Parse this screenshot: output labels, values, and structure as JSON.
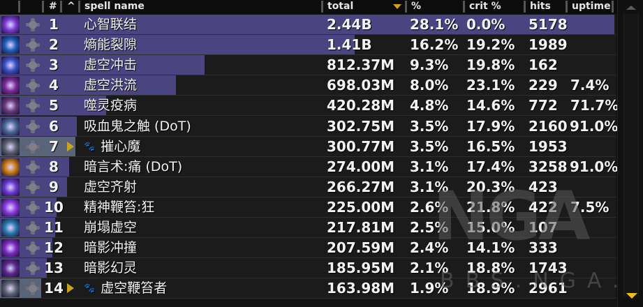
{
  "header": {
    "columns": [
      {
        "key": "rank",
        "label": "#"
      },
      {
        "key": "expand",
        "label": "^"
      },
      {
        "key": "name",
        "label": "spell name"
      },
      {
        "key": "total",
        "label": "total",
        "sorted": "desc"
      },
      {
        "key": "pct",
        "label": "%"
      },
      {
        "key": "crit",
        "label": "crit %"
      },
      {
        "key": "hits",
        "label": "hits"
      },
      {
        "key": "uptime",
        "label": "uptime"
      }
    ]
  },
  "colors": {
    "bar": "#4a4480",
    "pet_bar": "#5a6478",
    "sort_arrow": "#d4a017",
    "expand_arrow": "#c9a420",
    "row_bg": "#1b1b1b"
  },
  "rows": [
    {
      "rank": "1",
      "name": "心智联结",
      "total": "2.44B",
      "pct": "28.1%",
      "crit": "0.0%",
      "hits": "5178",
      "uptime": "",
      "bar": 880,
      "icon": "mind-link-icon",
      "icon_color": "#7a3ad0",
      "pet": false
    },
    {
      "rank": "2",
      "name": "熵能裂隙",
      "total": "1.41B",
      "pct": "16.2%",
      "crit": "19.2%",
      "hits": "1989",
      "uptime": "",
      "bar": 508,
      "icon": "entropic-rift-icon",
      "icon_color": "#1d5fb8",
      "pet": false
    },
    {
      "rank": "3",
      "name": "虚空冲击",
      "total": "812.37M",
      "pct": "9.3%",
      "crit": "19.8%",
      "hits": "162",
      "uptime": "",
      "bar": 293,
      "icon": "void-blast-icon",
      "icon_color": "#3a52c8",
      "pet": false
    },
    {
      "rank": "4",
      "name": "虚空洪流",
      "total": "698.03M",
      "pct": "8.0%",
      "crit": "23.1%",
      "hits": "229",
      "uptime": "7.4%",
      "bar": 252,
      "icon": "void-torrent-icon",
      "icon_color": "#7a2a9a",
      "pet": false
    },
    {
      "rank": "5",
      "name": "噬灵疫病",
      "total": "420.28M",
      "pct": "4.8%",
      "crit": "14.6%",
      "hits": "772",
      "uptime": "71.7%",
      "bar": 152,
      "icon": "devouring-plague-icon",
      "icon_color": "#6a3a7a",
      "pet": false
    },
    {
      "rank": "6",
      "name": "吸血鬼之触 (DoT)",
      "total": "302.75M",
      "pct": "3.5%",
      "crit": "17.9%",
      "hits": "2160",
      "uptime": "91.0%",
      "bar": 110,
      "icon": "vampiric-touch-icon",
      "icon_color": "#4a6a9a",
      "pet": false
    },
    {
      "rank": "7",
      "name": "摧心魔",
      "total": "300.77M",
      "pct": "3.5%",
      "crit": "16.5%",
      "hits": "1953",
      "uptime": "",
      "bar": 108,
      "icon": "mindbender-icon",
      "icon_color": "#5c6470",
      "pet": true
    },
    {
      "rank": "8",
      "name": "暗言术:痛 (DoT)",
      "total": "274.00M",
      "pct": "3.1%",
      "crit": "17.4%",
      "hits": "3258",
      "uptime": "91.0%",
      "bar": 99,
      "icon": "shadow-word-pain-icon",
      "icon_color": "#c87a10",
      "pet": false
    },
    {
      "rank": "9",
      "name": "虚空齐射",
      "total": "266.27M",
      "pct": "3.1%",
      "crit": "20.3%",
      "hits": "423",
      "uptime": "",
      "bar": 96,
      "icon": "void-volley-icon",
      "icon_color": "#6a3ad0",
      "pet": false
    },
    {
      "rank": "10",
      "name": "精神鞭笞:狂",
      "total": "225.00M",
      "pct": "2.6%",
      "crit": "21.8%",
      "hits": "422",
      "uptime": "7.5%",
      "bar": 81,
      "icon": "mind-flay-insanity-icon",
      "icon_color": "#8a3ae0",
      "pet": false
    },
    {
      "rank": "11",
      "name": "崩塌虚空",
      "total": "217.81M",
      "pct": "2.5%",
      "crit": "15.0%",
      "hits": "107",
      "uptime": "",
      "bar": 79,
      "icon": "collapsing-void-icon",
      "icon_color": "#2a7ab0",
      "pet": false
    },
    {
      "rank": "12",
      "name": "暗影冲撞",
      "total": "207.59M",
      "pct": "2.4%",
      "crit": "14.1%",
      "hits": "333",
      "uptime": "",
      "bar": 75,
      "icon": "shadow-crash-icon",
      "icon_color": "#7a2ac0",
      "pet": false
    },
    {
      "rank": "13",
      "name": "暗影幻灵",
      "total": "185.95M",
      "pct": "2.1%",
      "crit": "18.8%",
      "hits": "1743",
      "uptime": "",
      "bar": 67,
      "icon": "shadowy-apparition-icon",
      "icon_color": "#5a2a8a",
      "pet": false
    },
    {
      "rank": "14",
      "name": "虚空鞭笞者",
      "total": "163.98M",
      "pct": "1.9%",
      "crit": "18.9%",
      "hits": "2961",
      "uptime": "",
      "bar": 59,
      "icon": "voidwraith-icon",
      "icon_color": "#5c6470",
      "pet": true
    }
  ],
  "watermark": {
    "logo": "NGA",
    "site": "BBS.NGA.CN"
  }
}
